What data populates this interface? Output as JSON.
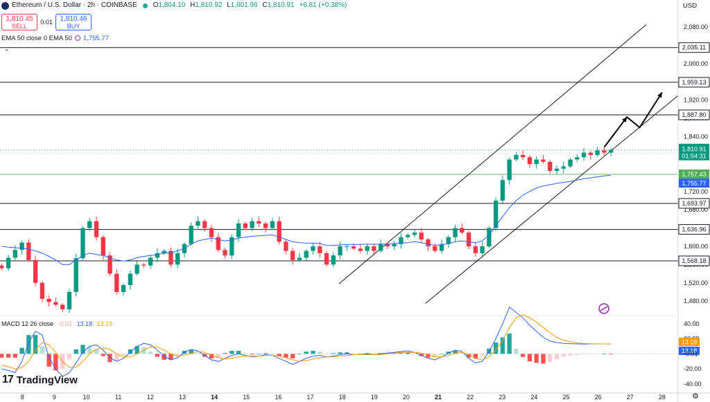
{
  "header": {
    "symbol": "Ethereum / U.S. Dollar · 2h · COINBASE",
    "o_label": "O",
    "o": "1,804.10",
    "h_label": "H",
    "h": "1,810.92",
    "l_label": "L",
    "l": "1,801.96",
    "c_label": "C",
    "c": "1,810.91",
    "change": "+6.81 (+0.38%)"
  },
  "trade": {
    "sell_price": "1,810.45",
    "sell_label": "SELL",
    "spread": "0.01",
    "buy_price": "1,810.46",
    "buy_label": "BUY"
  },
  "ema_legend": {
    "label": "EMA 50 close 0 EMA 50",
    "value": "1,755.77"
  },
  "macd_legend": {
    "label": "MACD 12 26 close",
    "hist": "-0.01",
    "macd": "13.18",
    "signal": "13.19"
  },
  "currency": "USD",
  "logo_text": "TradingView",
  "logo_mark": "17",
  "colors": {
    "up": "#089981",
    "down": "#f23645",
    "ema": "#2962ff",
    "macd_line": "#2962ff",
    "signal_line": "#ff9800",
    "hist_up_strong": "#26a69a",
    "hist_up_weak": "#b2dfdb",
    "hist_down_strong": "#ff5252",
    "hist_down_weak": "#ffcdd2"
  },
  "chart_data": {
    "type": "candlestick",
    "price_axis": {
      "ticks": [
        1480,
        1520,
        1560,
        1600,
        1640,
        1680,
        1720,
        1760,
        1800,
        1840,
        1880,
        1920,
        1960,
        2000,
        2040,
        2080
      ],
      "tick_labels": [
        "1,480.00",
        "1,520.00",
        "1,560.00",
        "1,600.00",
        "1,640.00",
        "1,680.00",
        "1,720.00",
        "1,760.00",
        "1,800.00",
        "1,840.00",
        "1,880.00",
        "1,920.00",
        "1,960.00",
        "2,000.00",
        "2,040.00",
        "2,080.00"
      ],
      "range": [
        1450,
        2115
      ]
    },
    "x_axis": {
      "labels": [
        "8",
        "9",
        "10",
        "11",
        "12",
        "13",
        "14",
        "15",
        "16",
        "17",
        "18",
        "19",
        "20",
        "21",
        "22",
        "23",
        "24",
        "25",
        "26",
        "27",
        "28"
      ],
      "bold": [
        "14",
        "21"
      ],
      "range_days": [
        7.3,
        28.5
      ]
    },
    "levels": [
      {
        "price": 2035.11,
        "label": "2,035.11"
      },
      {
        "price": 1959.13,
        "label": "1,959.13"
      },
      {
        "price": 1887.8,
        "label": "1,887.80"
      },
      {
        "price": 1693.97,
        "label": "1,693.97"
      },
      {
        "price": 1636.96,
        "label": "1,636.96"
      },
      {
        "price": 1568.18,
        "label": "1,568.18"
      }
    ],
    "last_price": {
      "price": 1810.91,
      "label": "1,810.91",
      "countdown": "01:54:31"
    },
    "ema_marker": {
      "price": 1755.77,
      "label": "1,755.77"
    },
    "green_level": {
      "price": 1757.43,
      "label": "1,757.43"
    },
    "channel": {
      "upper": [
        [
          17.9,
          1518
        ],
        [
          27.5,
          2085
        ]
      ],
      "lower": [
        [
          20.6,
          1475
        ],
        [
          28.5,
          1930
        ]
      ]
    },
    "forecast_arrow": [
      [
        26.2,
        1818
      ],
      [
        26.9,
        1883
      ],
      [
        27.3,
        1860
      ],
      [
        28.0,
        1937
      ]
    ],
    "closes": [
      1552,
      1575,
      1592,
      1608,
      1570,
      1520,
      1485,
      1478,
      1472,
      1462,
      1500,
      1574,
      1640,
      1655,
      1620,
      1580,
      1540,
      1500,
      1515,
      1540,
      1560,
      1558,
      1575,
      1585,
      1590,
      1560,
      1585,
      1605,
      1645,
      1655,
      1640,
      1620,
      1592,
      1580,
      1620,
      1650,
      1640,
      1655,
      1650,
      1640,
      1655,
      1610,
      1590,
      1570,
      1575,
      1590,
      1600,
      1585,
      1560,
      1580,
      1600,
      1600,
      1595,
      1590,
      1600,
      1590,
      1605,
      1600,
      1605,
      1620,
      1625,
      1630,
      1615,
      1600,
      1590,
      1605,
      1620,
      1640,
      1630,
      1600,
      1585,
      1600,
      1640,
      1700,
      1745,
      1790,
      1800,
      1795,
      1780,
      1790,
      1785,
      1765,
      1770,
      1775,
      1790,
      1795,
      1805,
      1800,
      1810,
      1805,
      1810.91
    ],
    "ema": [
      1600,
      1598,
      1597,
      1596,
      1594,
      1590,
      1585,
      1578,
      1570,
      1560,
      1560,
      1570,
      1580,
      1585,
      1582,
      1580,
      1575,
      1570,
      1568,
      1570,
      1575,
      1578,
      1580,
      1582,
      1585,
      1586,
      1590,
      1595,
      1605,
      1612,
      1615,
      1618,
      1615,
      1612,
      1614,
      1618,
      1620,
      1622,
      1623,
      1624,
      1625,
      1620,
      1615,
      1610,
      1608,
      1607,
      1607,
      1606,
      1602,
      1602,
      1603,
      1604,
      1604,
      1604,
      1605,
      1604,
      1605,
      1605,
      1606,
      1607,
      1608,
      1610,
      1608,
      1605,
      1602,
      1603,
      1606,
      1610,
      1612,
      1610,
      1608,
      1612,
      1625,
      1645,
      1665,
      1685,
      1700,
      1712,
      1720,
      1728,
      1732,
      1735,
      1738,
      1740,
      1742,
      1745,
      1748,
      1750,
      1752,
      1754,
      1755.77
    ],
    "macd": {
      "axis_ticks": [
        40,
        20,
        -20,
        -40
      ],
      "axis_labels": [
        "40.00",
        "20.00",
        "-20.00",
        "-40.00"
      ],
      "range": [
        -52,
        50
      ],
      "signal_value": 13.19,
      "macd_value": 13.18,
      "hist_value": -0.01,
      "macd_line": [
        -20,
        -22,
        -25,
        -10,
        15,
        30,
        25,
        -5,
        -20,
        -30,
        -25,
        -12,
        2,
        10,
        12,
        5,
        -5,
        -10,
        -6,
        2,
        10,
        14,
        12,
        5,
        -3,
        -8,
        -5,
        2,
        6,
        4,
        -2,
        -8,
        -10,
        -6,
        -2,
        0,
        -2,
        -4,
        -3,
        -1,
        -2,
        -6,
        -10,
        -14,
        -10,
        -6,
        -3,
        -2,
        -4,
        -3,
        -1,
        0,
        -1,
        -1,
        0,
        -1,
        0,
        1,
        2,
        3,
        4,
        2,
        -2,
        -6,
        -8,
        -4,
        1,
        5,
        3,
        -6,
        -12,
        -10,
        3,
        20,
        40,
        62,
        55,
        48,
        38,
        30,
        22,
        17,
        15,
        14,
        13.5,
        13.2,
        13.1,
        13.2,
        13.2,
        13.2,
        13.18
      ],
      "signal_line": [
        -15,
        -17,
        -20,
        -18,
        -10,
        5,
        15,
        12,
        2,
        -10,
        -18,
        -18,
        -10,
        0,
        6,
        8,
        6,
        0,
        -4,
        -4,
        0,
        5,
        9,
        9,
        5,
        0,
        -3,
        -2,
        1,
        3,
        2,
        -2,
        -5,
        -7,
        -6,
        -4,
        -3,
        -3,
        -3,
        -2,
        -2,
        -3,
        -5,
        -8,
        -10,
        -9,
        -7,
        -5,
        -4,
        -4,
        -3,
        -2,
        -1,
        -1,
        -1,
        -1,
        -1,
        0,
        1,
        2,
        2,
        2,
        1,
        -1,
        -4,
        -4,
        -2,
        1,
        2,
        -1,
        -6,
        -8,
        -4,
        5,
        18,
        35,
        48,
        52,
        48,
        42,
        35,
        28,
        22,
        18,
        16,
        14.5,
        13.8,
        13.4,
        13.3,
        13.2,
        13.19
      ],
      "histogram": [
        -5,
        -5,
        -5,
        8,
        25,
        25,
        10,
        -17,
        -22,
        -20,
        -7,
        6,
        12,
        10,
        6,
        -3,
        -11,
        -10,
        -2,
        6,
        10,
        9,
        3,
        -4,
        -8,
        -8,
        -2,
        4,
        5,
        1,
        -4,
        -6,
        -5,
        1,
        4,
        4,
        1,
        -1,
        0,
        1,
        0,
        -3,
        -5,
        -6,
        0,
        3,
        4,
        3,
        0,
        1,
        2,
        2,
        0,
        0,
        1,
        0,
        1,
        1,
        1,
        1,
        2,
        0,
        -3,
        -5,
        -4,
        0,
        3,
        4,
        1,
        -5,
        -6,
        -2,
        7,
        15,
        22,
        27,
        7,
        -4,
        -10,
        -12,
        -13,
        -11,
        -7,
        -4,
        -2.5,
        -1.3,
        -0.7,
        -0.2,
        -0.1,
        0,
        -0.01
      ]
    }
  }
}
